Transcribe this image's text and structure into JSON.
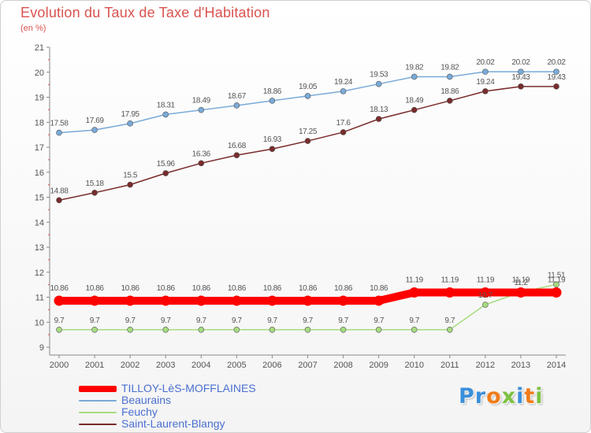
{
  "chart_data": {
    "type": "line",
    "title": "Evolution du Taux de Taxe d'Habitation",
    "subtitle": "(en %)",
    "categories": [
      "2000",
      "2001",
      "2002",
      "2003",
      "2004",
      "2005",
      "2006",
      "2007",
      "2008",
      "2009",
      "2010",
      "2011",
      "2012",
      "2013",
      "2014"
    ],
    "ylim": [
      9,
      21
    ],
    "yticks": [
      "9",
      "10",
      "11",
      "12",
      "13",
      "14",
      "15",
      "16",
      "17",
      "18",
      "19",
      "20",
      "21"
    ],
    "grid": false,
    "series": [
      {
        "name": "TILLOY-LèS-MOFFLAINES",
        "color": "#ff0000",
        "emphasis": true,
        "values": [
          10.86,
          10.86,
          10.86,
          10.86,
          10.86,
          10.86,
          10.86,
          10.86,
          10.86,
          10.86,
          11.19,
          11.19,
          11.19,
          11.19,
          11.19
        ],
        "labels": [
          "10.86",
          "10.86",
          "10.86",
          "10.86",
          "10.86",
          "10.86",
          "10.86",
          "10.86",
          "10.86",
          "10.86",
          "11.19",
          "11.19",
          "11.19",
          "11.19",
          "11.19"
        ]
      },
      {
        "name": "Beaurains",
        "color": "#7aaad8",
        "emphasis": false,
        "values": [
          17.58,
          17.69,
          17.95,
          18.31,
          18.49,
          18.67,
          18.86,
          19.05,
          19.24,
          19.53,
          19.82,
          19.82,
          20.02,
          20.02,
          20.02
        ],
        "labels": [
          "17.58",
          "17.69",
          "17.95",
          "18.31",
          "18.49",
          "18.67",
          "18.86",
          "19.05",
          "19.24",
          "19.53",
          "19.82",
          "19.82",
          "20.02",
          "20.02",
          "20.02"
        ]
      },
      {
        "name": "Feuchy",
        "color": "#a6dc80",
        "emphasis": false,
        "values": [
          9.7,
          9.7,
          9.7,
          9.7,
          9.7,
          9.7,
          9.7,
          9.7,
          9.7,
          9.7,
          9.7,
          9.7,
          10.7,
          11.2,
          11.51
        ],
        "labels": [
          "9.7",
          "9.7",
          "9.7",
          "9.7",
          "9.7",
          "9.7",
          "9.7",
          "9.7",
          "9.7",
          "9.7",
          "9.7",
          "9.7",
          "10.7",
          "11.2",
          "11.51"
        ]
      },
      {
        "name": "Saint-Laurent-Blangy",
        "color": "#7a2b2b",
        "emphasis": false,
        "values": [
          14.88,
          15.18,
          15.5,
          15.96,
          16.36,
          16.68,
          16.93,
          17.25,
          17.6,
          18.13,
          18.49,
          18.86,
          19.24,
          19.43,
          19.43
        ],
        "labels": [
          "14.88",
          "15.18",
          "15.5",
          "15.96",
          "16.36",
          "16.68",
          "16.93",
          "17.25",
          "17.6",
          "18.13",
          "18.49",
          "18.86",
          "19.24",
          "19.43",
          "19.43"
        ]
      }
    ],
    "legend_position": "bottom-left"
  },
  "logo": {
    "letters": [
      {
        "char": "P",
        "color": "#3a8fd9"
      },
      {
        "char": "r",
        "color": "#3a8fd9"
      },
      {
        "char": "o",
        "color": "#f07c1a"
      },
      {
        "char": "x",
        "color": "#7cc242"
      },
      {
        "char": "i",
        "color": "#3a8fd9"
      },
      {
        "char": "t",
        "color": "#f07c1a"
      },
      {
        "char": "i",
        "color": "#7cc242"
      }
    ]
  }
}
